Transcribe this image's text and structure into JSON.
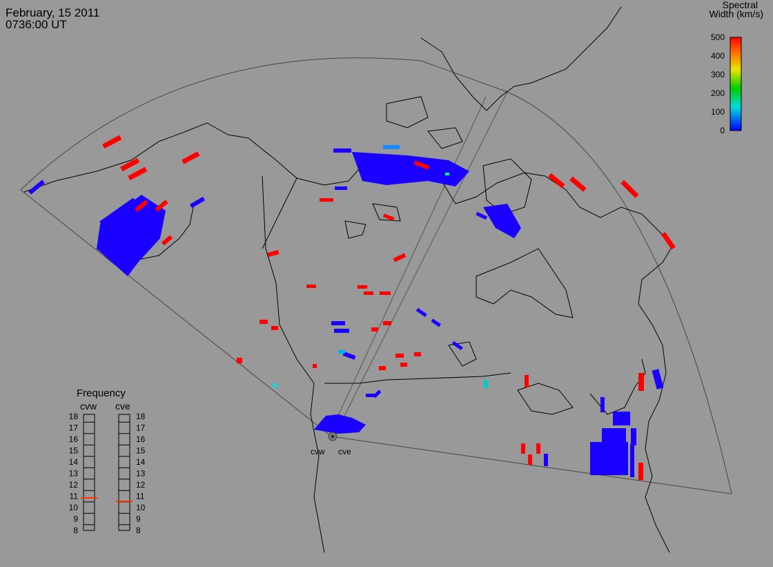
{
  "header": {
    "date": "February, 15 2011",
    "time": "0736:00 UT"
  },
  "colorbar": {
    "title_line1": "Spectral",
    "title_line2": "Width (km/s)",
    "ticks": [
      "500",
      "400",
      "300",
      "200",
      "100",
      "0"
    ],
    "colors": [
      "#ff0000",
      "#ff7700",
      "#e6e600",
      "#00cc00",
      "#00dddd",
      "#0000ff"
    ]
  },
  "radars": {
    "cvw_label": "cvw",
    "cve_label": "cve"
  },
  "frequency_panel": {
    "title": "Frequency",
    "cvw_label": "cvw",
    "cve_label": "cve",
    "scale": [
      "18",
      "17",
      "16",
      "15",
      "14",
      "13",
      "12",
      "11",
      "10",
      "9",
      "8"
    ],
    "cvw_value_mhz": 10.85,
    "cve_value_mhz": 10.55,
    "marker_color": "#ff3300"
  },
  "colors": {
    "background": "#999999",
    "coastline": "#000000",
    "fov_outline": "#333333",
    "low_width": "#1a00ff",
    "high_width": "#ff0000"
  }
}
